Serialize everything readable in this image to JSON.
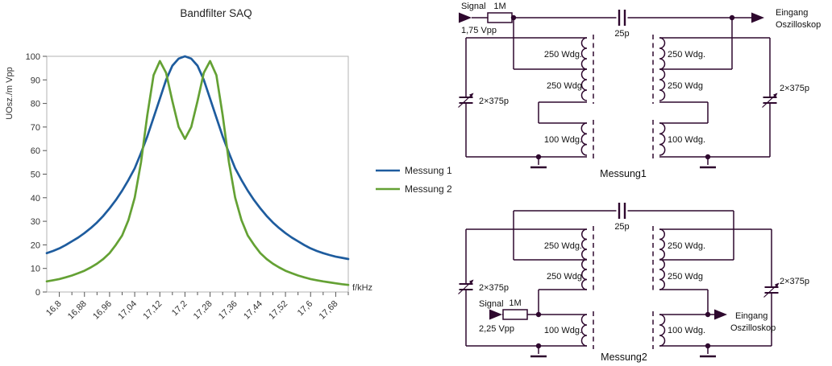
{
  "chart_data": {
    "type": "line",
    "title": "Bandfilter SAQ",
    "xlabel": "f/kHz",
    "ylabel": "UOsz./m Vpp",
    "xlim": [
      16.76,
      17.72
    ],
    "ylim": [
      0,
      100
    ],
    "grid": false,
    "legend_position": "right",
    "x_tick_labels": [
      "16,8",
      "16,88",
      "16,96",
      "17,04",
      "17,12",
      "17,2",
      "17,28",
      "17,36",
      "17,44",
      "17,52",
      "17,6",
      "17,68"
    ],
    "x_tick_values": [
      16.8,
      16.88,
      16.96,
      17.04,
      17.12,
      17.2,
      17.28,
      17.36,
      17.44,
      17.52,
      17.6,
      17.68
    ],
    "y_ticks": [
      0,
      10,
      20,
      30,
      40,
      50,
      60,
      70,
      80,
      90,
      100
    ],
    "x": [
      16.76,
      16.78,
      16.8,
      16.82,
      16.84,
      16.86,
      16.88,
      16.9,
      16.92,
      16.94,
      16.96,
      16.98,
      17.0,
      17.02,
      17.04,
      17.06,
      17.08,
      17.1,
      17.12,
      17.14,
      17.16,
      17.18,
      17.2,
      17.22,
      17.24,
      17.26,
      17.28,
      17.3,
      17.32,
      17.34,
      17.36,
      17.38,
      17.4,
      17.42,
      17.44,
      17.46,
      17.48,
      17.5,
      17.52,
      17.54,
      17.56,
      17.58,
      17.6,
      17.62,
      17.64,
      17.66,
      17.68,
      17.7,
      17.72
    ],
    "series": [
      {
        "name": "Messung 1",
        "color": "#1e5c9e",
        "values": [
          16.5,
          17.4,
          18.5,
          19.9,
          21.5,
          23.1,
          25,
          27.1,
          29.5,
          32.3,
          35.5,
          39,
          43,
          47.5,
          52.5,
          59,
          66,
          74,
          82,
          90,
          96,
          99,
          100,
          99,
          96,
          90,
          82,
          74,
          66,
          59,
          52.5,
          47.5,
          43,
          39,
          35.5,
          32.3,
          29.5,
          27.1,
          25,
          23.1,
          21.5,
          19.9,
          18.5,
          17.4,
          16.5,
          15.7,
          15,
          14.5,
          14
        ]
      },
      {
        "name": "Messung 2",
        "color": "#64a134",
        "values": [
          4.5,
          5,
          5.5,
          6.2,
          7,
          8,
          9,
          10.4,
          12,
          14,
          16.5,
          20,
          24,
          30.5,
          40,
          55,
          75,
          92,
          98,
          93,
          81,
          70,
          65,
          70,
          81,
          93,
          98,
          92,
          75,
          55,
          40,
          30.5,
          24,
          20,
          16.5,
          14,
          12,
          10.4,
          9,
          8,
          7,
          6.2,
          5.5,
          5,
          4.5,
          4.1,
          3.7,
          3.3,
          3
        ]
      }
    ]
  },
  "colors": {
    "wire": "#2e082e",
    "axis_text": "#333333",
    "plot_border": "#b3b3b3",
    "tick": "#555555",
    "schematic_text": "#101010"
  },
  "schematic": {
    "m1": {
      "caption": "Messung1",
      "signal_label": "Signal",
      "signal_level": "1,75 Vpp",
      "series_resistor": "1M",
      "coupling_capacitor": "25p",
      "output_label_line1": "Eingang",
      "output_label_line2": "Oszilloskop",
      "left_tuning_capacitor": "2×375p",
      "right_tuning_capacitor": "2×375p",
      "left_primary_upper": "250 Wdg.",
      "left_primary_lower": "250 Wdg",
      "left_secondary": "100 Wdg.",
      "right_primary_upper": "250 Wdg.",
      "right_primary_lower": "250 Wdg",
      "right_secondary": "100 Wdg."
    },
    "m2": {
      "caption": "Messung2",
      "signal_label": "Signal",
      "signal_level": "2,25 Vpp",
      "series_resistor": "1M",
      "coupling_capacitor": "25p",
      "output_label_line1": "Eingang",
      "output_label_line2": "Oszilloskop",
      "left_tuning_capacitor": "2×375p",
      "right_tuning_capacitor": "2×375p",
      "left_primary_upper": "250 Wdg.",
      "left_primary_lower": "250 Wdg",
      "left_secondary": "100 Wdg.",
      "right_primary_upper": "250 Wdg.",
      "right_primary_lower": "250 Wdg",
      "right_secondary": "100 Wdg."
    }
  }
}
